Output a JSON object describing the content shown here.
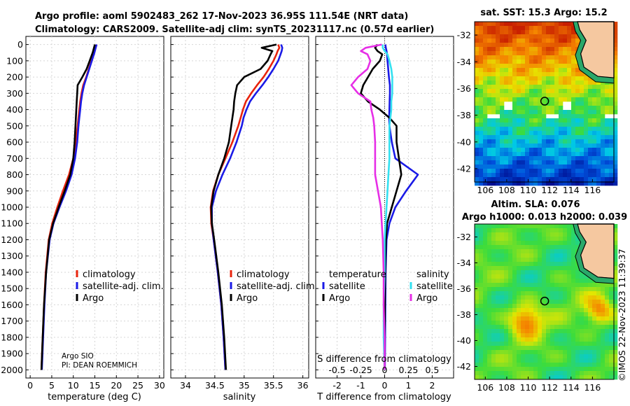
{
  "header": {
    "title_line1": "Argo profile: aoml 5902483_262 17-Nov-2023 36.95S 111.54E (NRT data)",
    "title_line2": "Climatology: CARS2009. Satellite-adj clim: synTS_20231117.nc (0.57d earlier)"
  },
  "credit": {
    "source": "Argo SIO",
    "pi": "PI: DEAN ROEMMICH"
  },
  "watermark": "©IMOS 22-Nov-2023 11:39:37",
  "colors": {
    "climatology": "#e8230c",
    "satellite": "#1a1ae6",
    "argo": "#000000",
    "sal_satellite": "#33e0f0",
    "sal_argo": "#e62ee6"
  },
  "chart_data": [
    {
      "id": "temperature",
      "type": "line",
      "xlabel": "temperature (deg C)",
      "ylabel": "",
      "xlim": [
        -1,
        31
      ],
      "ylim": [
        2050,
        0
      ],
      "xticks": [
        "0",
        "5",
        "10",
        "15",
        "20",
        "25",
        "30"
      ],
      "yticks": [
        "0",
        "100",
        "200",
        "300",
        "400",
        "500",
        "600",
        "700",
        "800",
        "900",
        "1000",
        "1100",
        "1200",
        "1300",
        "1400",
        "1500",
        "1600",
        "1700",
        "1800",
        "1900",
        "2000"
      ],
      "legend": [
        "climatology",
        "satellite-adj. clim.",
        "Argo"
      ],
      "depth": [
        0,
        50,
        100,
        150,
        200,
        250,
        300,
        350,
        400,
        450,
        500,
        600,
        700,
        800,
        900,
        1000,
        1100,
        1200,
        1400,
        1600,
        1800,
        2000
      ],
      "series": [
        {
          "name": "climatology",
          "values": [
            15.4,
            14.8,
            14.2,
            13.6,
            13.0,
            12.3,
            11.9,
            11.6,
            11.4,
            11.2,
            11.0,
            10.6,
            10.0,
            9.0,
            7.6,
            6.3,
            5.1,
            4.3,
            3.6,
            3.2,
            2.9,
            2.6
          ]
        },
        {
          "name": "satellite-adj. clim.",
          "values": [
            15.4,
            14.9,
            14.3,
            13.7,
            13.1,
            12.5,
            12.1,
            11.8,
            11.6,
            11.4,
            11.2,
            10.9,
            10.4,
            9.6,
            8.3,
            6.8,
            5.4,
            4.5,
            3.7,
            3.3,
            3.0,
            2.7
          ]
        },
        {
          "name": "Argo",
          "values": [
            15.0,
            14.5,
            13.8,
            13.1,
            12.1,
            11.0,
            10.9,
            10.8,
            10.7,
            10.6,
            10.5,
            10.3,
            10.0,
            9.3,
            8.0,
            6.6,
            5.3,
            4.4,
            3.7,
            3.2,
            2.9,
            2.6
          ]
        }
      ]
    },
    {
      "id": "salinity",
      "type": "line",
      "xlabel": "salinity",
      "xlim": [
        33.75,
        36.1
      ],
      "ylim": [
        2050,
        0
      ],
      "xticks": [
        "34",
        "34.5",
        "35",
        "35.5",
        "36"
      ],
      "legend": [
        "climatology",
        "satellite-adj. clim.",
        "Argo"
      ],
      "depth": [
        0,
        20,
        40,
        60,
        100,
        150,
        200,
        250,
        300,
        350,
        400,
        450,
        500,
        600,
        700,
        800,
        900,
        1000,
        1100,
        1200,
        1400,
        1600,
        1800,
        2000
      ],
      "series": [
        {
          "name": "climatology",
          "values": [
            35.58,
            35.6,
            35.57,
            35.55,
            35.5,
            35.42,
            35.33,
            35.22,
            35.12,
            35.03,
            34.98,
            34.94,
            34.9,
            34.8,
            34.68,
            34.56,
            34.47,
            34.43,
            34.44,
            34.48,
            34.55,
            34.61,
            34.65,
            34.68
          ]
        },
        {
          "name": "satellite-adj. clim.",
          "values": [
            35.63,
            35.65,
            35.64,
            35.62,
            35.58,
            35.5,
            35.41,
            35.31,
            35.2,
            35.1,
            35.04,
            34.99,
            34.96,
            34.87,
            34.76,
            34.63,
            34.52,
            34.45,
            34.45,
            34.48,
            34.55,
            34.61,
            34.65,
            34.68
          ]
        },
        {
          "name": "Argo",
          "values": [
            35.55,
            35.3,
            35.48,
            35.45,
            35.4,
            35.28,
            35.0,
            34.88,
            34.85,
            34.83,
            34.82,
            34.8,
            34.78,
            34.74,
            34.66,
            34.56,
            34.48,
            34.44,
            34.45,
            34.49,
            34.56,
            34.62,
            34.66,
            34.69
          ]
        }
      ]
    },
    {
      "id": "difference",
      "type": "line",
      "xlabel": "T difference from climatology",
      "top_label": "S difference from climatology",
      "xlim": [
        -2.9,
        2.9
      ],
      "ylim": [
        2050,
        0
      ],
      "xticks": [
        "-2",
        "-1",
        "0",
        "1",
        "2"
      ],
      "xticks_salinity": [
        "-0.5",
        "-0.25",
        "0",
        "0.25",
        "0.5"
      ],
      "legend_temperature": [
        "temperature",
        "satellite",
        "Argo"
      ],
      "legend_salinity": [
        "salinity",
        "satellite",
        "Argo"
      ],
      "depth": [
        0,
        20,
        40,
        60,
        100,
        150,
        200,
        250,
        300,
        350,
        400,
        450,
        500,
        600,
        700,
        800,
        900,
        1000,
        1100,
        1200,
        1400,
        1600,
        1800,
        2000
      ],
      "series": [
        {
          "name": "temperature satellite",
          "values": [
            0.03,
            0.05,
            0.08,
            0.1,
            0.12,
            0.15,
            0.18,
            0.22,
            0.22,
            0.21,
            0.2,
            0.19,
            0.2,
            0.3,
            0.45,
            1.4,
            0.9,
            0.45,
            0.2,
            0.08,
            0.04,
            0.03,
            0.02,
            0.01
          ]
        },
        {
          "name": "temperature Argo",
          "values": [
            -0.3,
            -0.4,
            -0.3,
            -0.1,
            -0.2,
            -0.5,
            -0.7,
            -0.9,
            -1.0,
            -0.7,
            -0.2,
            0.2,
            0.5,
            0.5,
            0.6,
            0.7,
            0.5,
            0.3,
            0.1,
            0.05,
            0.02,
            0.01,
            0.0,
            -0.01
          ]
        },
        {
          "name": "salinity satellite",
          "values": [
            -0.02,
            -0.02,
            0.0,
            0.03,
            0.05,
            0.07,
            0.08,
            0.08,
            0.08,
            0.07,
            0.07,
            0.06,
            0.05,
            0.05,
            0.05,
            0.04,
            0.03,
            0.02,
            0.01,
            0.0,
            0.0,
            -0.01,
            -0.01,
            0.0
          ]
        },
        {
          "name": "salinity Argo",
          "values": [
            -0.03,
            -0.2,
            -0.25,
            -0.18,
            -0.15,
            -0.18,
            -0.28,
            -0.35,
            -0.28,
            -0.15,
            -0.14,
            -0.12,
            -0.11,
            -0.1,
            -0.1,
            -0.1,
            -0.07,
            -0.04,
            -0.03,
            -0.02,
            -0.01,
            -0.01,
            0.0,
            0.0
          ]
        }
      ]
    }
  ],
  "maps": {
    "sst": {
      "title": "sat. SST: 15.3 Argo: 15.2",
      "xticks": [
        "106",
        "108",
        "110",
        "112",
        "114",
        "116"
      ],
      "yticks": [
        "-32",
        "-34",
        "-36",
        "-38",
        "-40",
        "-42"
      ],
      "lon_range": [
        105,
        118
      ],
      "lat_range": [
        -31,
        -43
      ],
      "marker": [
        111.54,
        -36.95
      ]
    },
    "sla": {
      "title": "Altim. SLA: 0.076",
      "subtitle": "Argo h1000: 0.013 h2000: 0.039",
      "xticks": [
        "106",
        "108",
        "110",
        "112",
        "114",
        "116"
      ],
      "yticks": [
        "-32",
        "-34",
        "-36",
        "-38",
        "-40",
        "-42"
      ],
      "lon_range": [
        105,
        118
      ],
      "lat_range": [
        -31,
        -43
      ],
      "marker": [
        111.54,
        -36.95
      ]
    }
  }
}
